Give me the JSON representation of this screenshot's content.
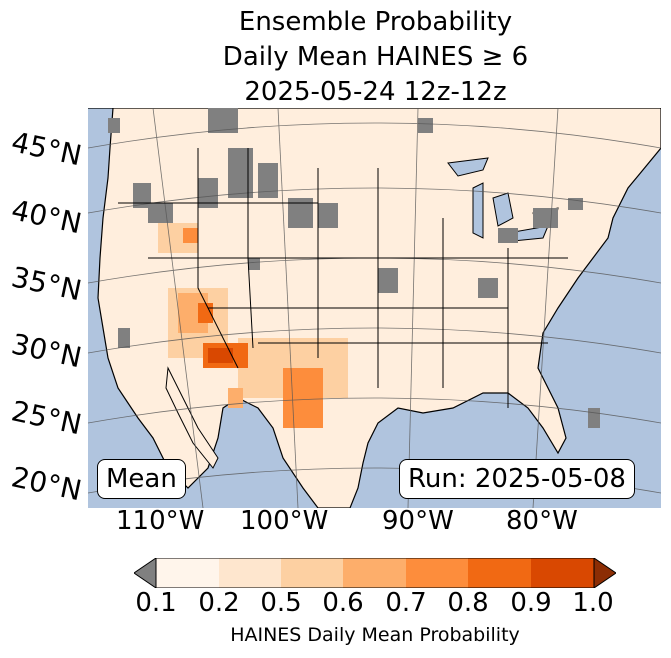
{
  "title": {
    "line1": "Ensemble Probability",
    "line2": "Daily Mean HAINES ≥ 6",
    "line3": "2025-05-24 12z-12z"
  },
  "map": {
    "lat_labels": [
      "45°N",
      "40°N",
      "35°N",
      "30°N",
      "25°N",
      "20°N"
    ],
    "lon_labels": [
      "110°W",
      "100°W",
      "90°W",
      "80°W"
    ],
    "mean_label": "Mean",
    "run_label": "Run: 2025-05-08",
    "colors": {
      "ocean": "#b0c4de",
      "land_low": "#fff5eb",
      "no_data": "#808080"
    }
  },
  "colorbar": {
    "ticks": [
      "0.1",
      "0.2",
      "0.5",
      "0.6",
      "0.7",
      "0.8",
      "0.9",
      "1.0"
    ],
    "label": "HAINES Daily Mean Probability",
    "colors": [
      "#808080",
      "#fff5eb",
      "#fee6ce",
      "#fdd0a2",
      "#fdae6b",
      "#fd8d3c",
      "#f16913",
      "#d94801",
      "#8c2d04"
    ]
  }
}
